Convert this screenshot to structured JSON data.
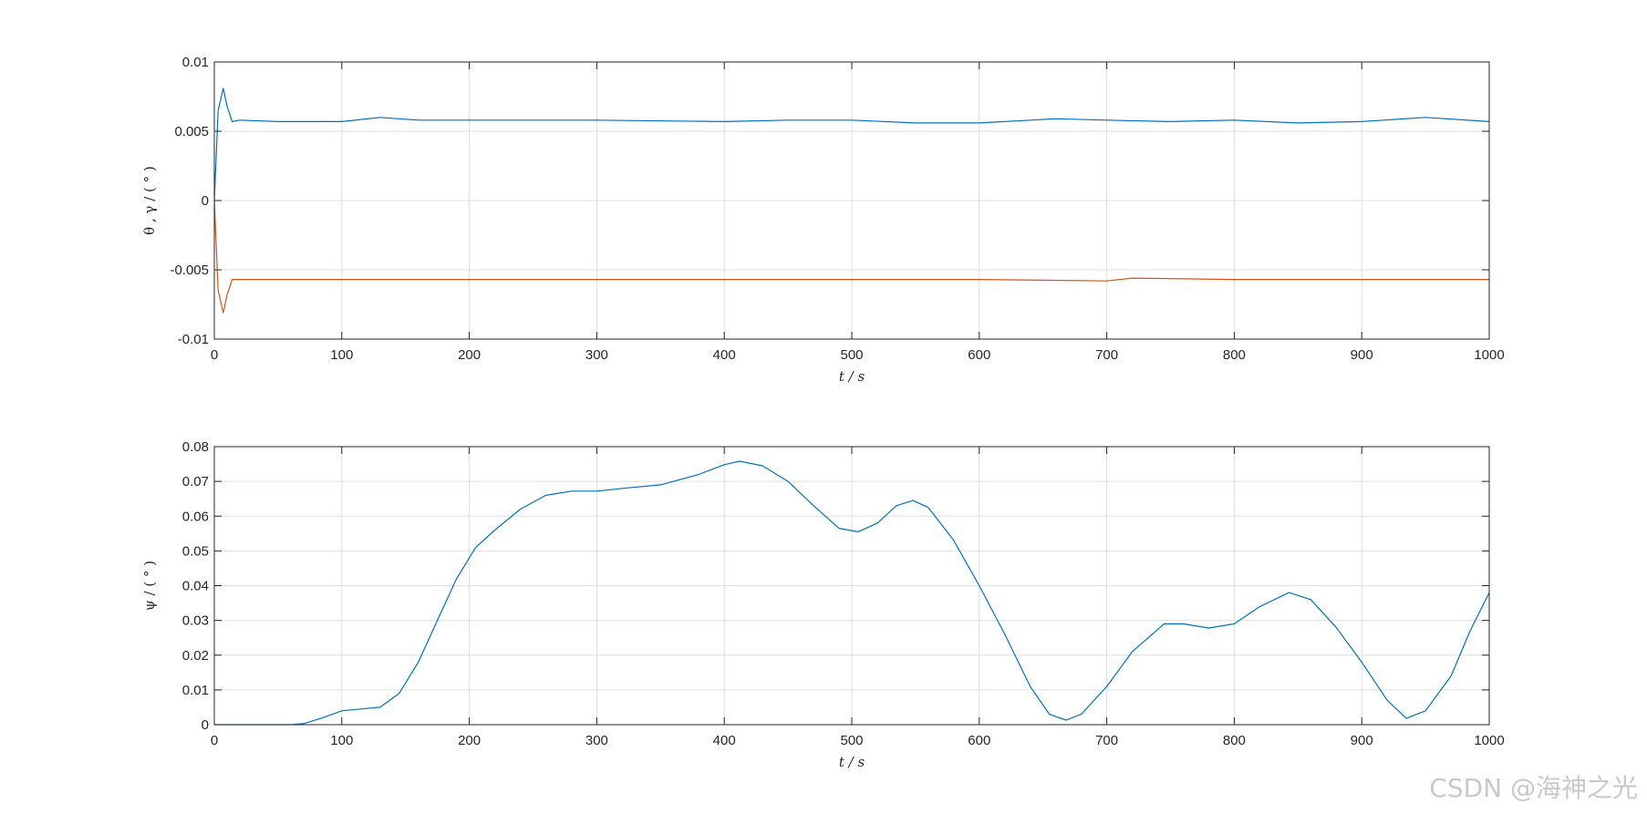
{
  "watermark": "CSDN @海神之光",
  "chart_data": [
    {
      "type": "line",
      "xlabel": "t / s",
      "ylabel": "θ , γ / ( ° )",
      "xlim": [
        0,
        1000
      ],
      "ylim": [
        -0.01,
        0.01
      ],
      "xticks": [
        0,
        100,
        200,
        300,
        400,
        500,
        600,
        700,
        800,
        900,
        1000
      ],
      "yticks": [
        -0.01,
        -0.005,
        0,
        0.005,
        0.01
      ],
      "ytick_labels": [
        "-0.01",
        "-0.005",
        "0",
        "0.005",
        "0.01"
      ],
      "grid": true,
      "series": [
        {
          "color": "#0072bd",
          "x": [
            0,
            3,
            7,
            10,
            14,
            20,
            50,
            100,
            130,
            160,
            200,
            300,
            400,
            450,
            500,
            550,
            600,
            660,
            700,
            750,
            800,
            850,
            900,
            950,
            1000
          ],
          "y": [
            0,
            0.0065,
            0.0081,
            0.0068,
            0.0057,
            0.0058,
            0.0057,
            0.0057,
            0.006,
            0.0058,
            0.0058,
            0.0058,
            0.0057,
            0.0058,
            0.0058,
            0.0056,
            0.0056,
            0.0059,
            0.0058,
            0.0057,
            0.0058,
            0.0056,
            0.0057,
            0.006,
            0.0057
          ]
        },
        {
          "color": "#d95319",
          "x": [
            0,
            3,
            7,
            10,
            14,
            20,
            50,
            100,
            200,
            250,
            300,
            400,
            500,
            600,
            700,
            720,
            800,
            900,
            1000
          ],
          "y": [
            0,
            -0.0065,
            -0.0081,
            -0.0068,
            -0.0057,
            -0.0057,
            -0.0057,
            -0.0057,
            -0.0057,
            -0.0057,
            -0.0057,
            -0.0057,
            -0.0057,
            -0.0057,
            -0.0058,
            -0.0056,
            -0.0057,
            -0.0057,
            -0.0057
          ]
        }
      ]
    },
    {
      "type": "line",
      "xlabel": "t / s",
      "ylabel": "ψ / ( ° )",
      "xlim": [
        0,
        1000
      ],
      "ylim": [
        0,
        0.08
      ],
      "xticks": [
        0,
        100,
        200,
        300,
        400,
        500,
        600,
        700,
        800,
        900,
        1000
      ],
      "yticks": [
        0,
        0.01,
        0.02,
        0.03,
        0.04,
        0.05,
        0.06,
        0.07,
        0.08
      ],
      "ytick_labels": [
        "0",
        "0.01",
        "0.02",
        "0.03",
        "0.04",
        "0.05",
        "0.06",
        "0.07",
        "0.08"
      ],
      "grid": true,
      "series": [
        {
          "color": "#0072bd",
          "x": [
            0,
            60,
            70,
            85,
            100,
            115,
            130,
            145,
            160,
            175,
            190,
            205,
            220,
            240,
            260,
            280,
            300,
            320,
            350,
            380,
            400,
            412,
            430,
            450,
            470,
            490,
            505,
            520,
            535,
            548,
            560,
            580,
            600,
            620,
            640,
            655,
            668,
            680,
            700,
            720,
            745,
            760,
            780,
            800,
            820,
            843,
            860,
            880,
            900,
            920,
            935,
            950,
            970,
            985,
            1000
          ],
          "y": [
            0,
            0,
            0.0003,
            0.002,
            0.004,
            0.0045,
            0.005,
            0.009,
            0.018,
            0.03,
            0.042,
            0.051,
            0.056,
            0.062,
            0.066,
            0.0672,
            0.0672,
            0.068,
            0.069,
            0.072,
            0.0748,
            0.0758,
            0.0745,
            0.07,
            0.063,
            0.0565,
            0.0555,
            0.058,
            0.063,
            0.0645,
            0.0625,
            0.053,
            0.04,
            0.026,
            0.011,
            0.003,
            0.0013,
            0.003,
            0.011,
            0.021,
            0.029,
            0.029,
            0.0278,
            0.029,
            0.034,
            0.038,
            0.036,
            0.028,
            0.018,
            0.007,
            0.0018,
            0.004,
            0.014,
            0.027,
            0.038
          ]
        }
      ]
    }
  ]
}
